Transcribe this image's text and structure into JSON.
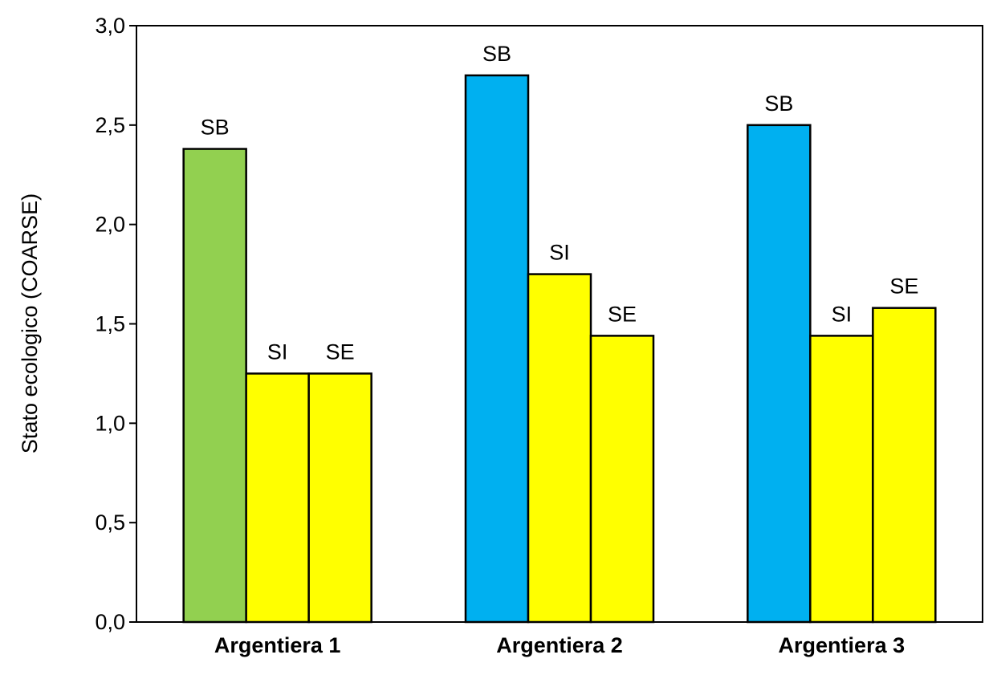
{
  "chart_data": {
    "type": "bar",
    "title": "",
    "ylabel": "Stato ecologico (COARSE)",
    "xlabel": "",
    "ylim": [
      0,
      3
    ],
    "yticks": [
      "0,0",
      "0,5",
      "1,0",
      "1,5",
      "2,0",
      "2,5",
      "3,0"
    ],
    "ytick_values": [
      0,
      0.5,
      1.0,
      1.5,
      2.0,
      2.5,
      3.0
    ],
    "grid": false,
    "categories": [
      "Argentiera 1",
      "Argentiera 2",
      "Argentiera 3"
    ],
    "groups": [
      {
        "category": "Argentiera 1",
        "bars": [
          {
            "label": "SB",
            "value": 2.38,
            "color": "#92D050"
          },
          {
            "label": "SI",
            "value": 1.25,
            "color": "#FFFF00"
          },
          {
            "label": "SE",
            "value": 1.25,
            "color": "#FFFF00"
          }
        ]
      },
      {
        "category": "Argentiera 2",
        "bars": [
          {
            "label": "SB",
            "value": 2.75,
            "color": "#00B0F0"
          },
          {
            "label": "SI",
            "value": 1.75,
            "color": "#FFFF00"
          },
          {
            "label": "SE",
            "value": 1.44,
            "color": "#FFFF00"
          }
        ]
      },
      {
        "category": "Argentiera 3",
        "bars": [
          {
            "label": "SB",
            "value": 2.5,
            "color": "#00B0F0"
          },
          {
            "label": "SI",
            "value": 1.44,
            "color": "#FFFF00"
          },
          {
            "label": "SE",
            "value": 1.58,
            "color": "#FFFF00"
          }
        ]
      }
    ]
  }
}
